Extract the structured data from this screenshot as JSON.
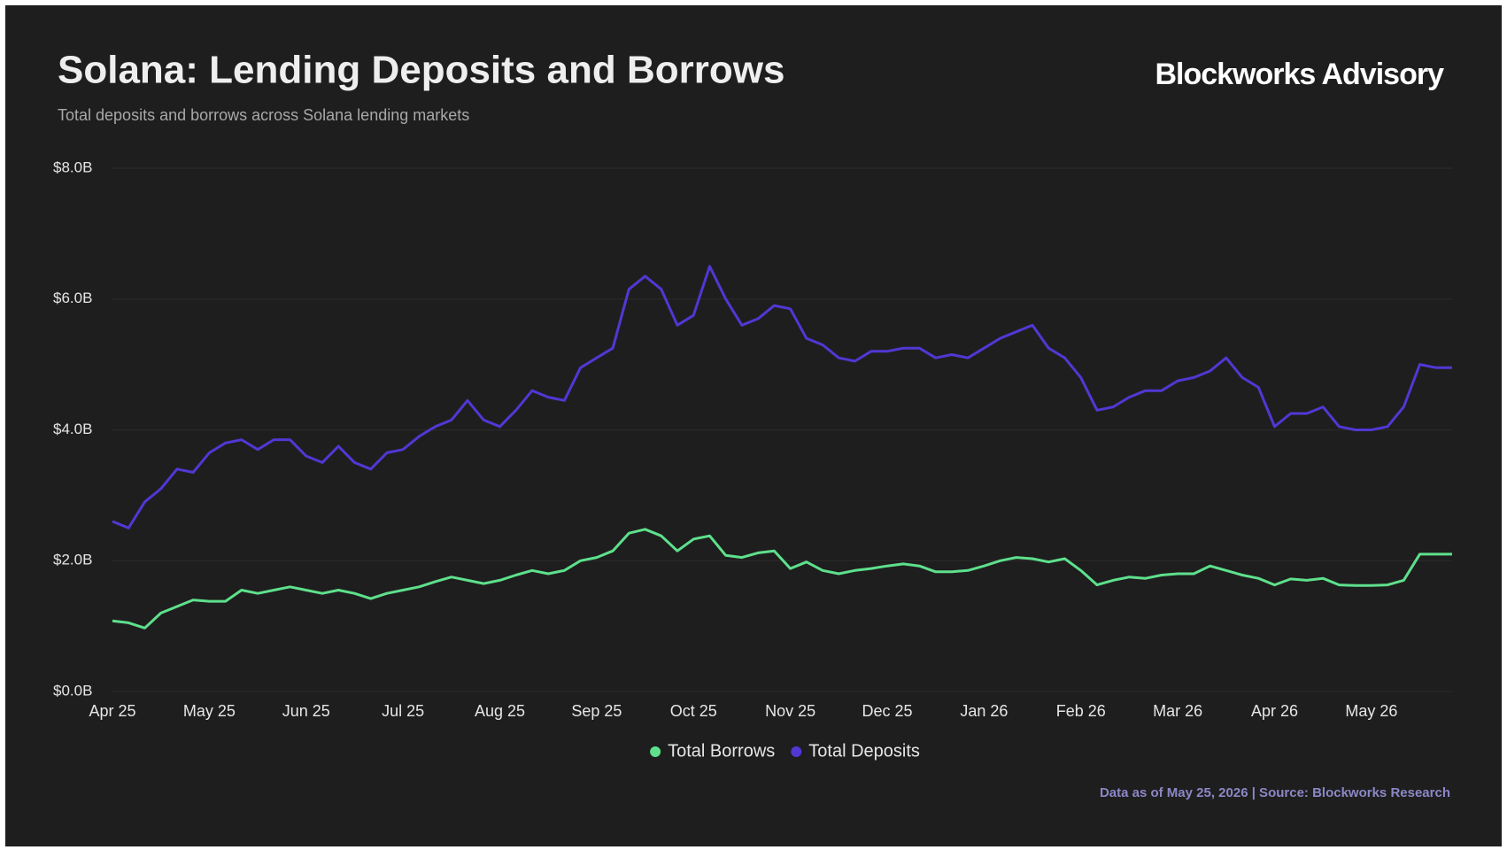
{
  "brand": "Blockworks Advisory",
  "footer": "Data as of May 25, 2026 | Source: Blockworks Research",
  "chart_data": {
    "type": "line",
    "title": "Solana: Lending Deposits and Borrows",
    "subtitle": "Total deposits and borrows across Solana lending markets",
    "categories": [
      "Apr 25",
      null,
      null,
      null,
      null,
      null,
      "May 25",
      null,
      null,
      null,
      null,
      null,
      "Jun 25",
      null,
      null,
      null,
      null,
      null,
      "Jul 25",
      null,
      null,
      null,
      null,
      null,
      "Aug 25",
      null,
      null,
      null,
      null,
      null,
      "Sep 25",
      null,
      null,
      null,
      null,
      null,
      "Oct 25",
      null,
      null,
      null,
      null,
      null,
      "Nov 25",
      null,
      null,
      null,
      null,
      null,
      "Dec 25",
      null,
      null,
      null,
      null,
      null,
      "Jan 26",
      null,
      null,
      null,
      null,
      null,
      "Feb 26",
      null,
      null,
      null,
      null,
      null,
      "Mar 26",
      null,
      null,
      null,
      null,
      null,
      "Apr 26",
      null,
      null,
      null,
      null,
      null,
      "May 26",
      null,
      null,
      null,
      null,
      null
    ],
    "series": [
      {
        "name": "Total Borrows",
        "color": "#5ee08c",
        "values": [
          1.08,
          1.05,
          0.97,
          1.2,
          1.3,
          1.4,
          1.38,
          1.38,
          1.55,
          1.5,
          1.55,
          1.6,
          1.55,
          1.5,
          1.55,
          1.5,
          1.42,
          1.5,
          1.55,
          1.6,
          1.68,
          1.75,
          1.7,
          1.65,
          1.7,
          1.78,
          1.85,
          1.8,
          1.85,
          2.0,
          2.05,
          2.15,
          2.42,
          2.48,
          2.38,
          2.15,
          2.33,
          2.38,
          2.08,
          2.05,
          2.12,
          2.15,
          1.88,
          1.98,
          1.85,
          1.8,
          1.85,
          1.88,
          1.92,
          1.95,
          1.92,
          1.83,
          1.83,
          1.85,
          1.92,
          2.0,
          2.05,
          2.03,
          1.98,
          2.03,
          1.85,
          1.63,
          1.7,
          1.75,
          1.73,
          1.78,
          1.8,
          1.8,
          1.92,
          1.85,
          1.78,
          1.73,
          1.63,
          1.72,
          1.7,
          1.73,
          1.63,
          1.62,
          1.62,
          1.63,
          1.7,
          2.1,
          2.1,
          2.1
        ]
      },
      {
        "name": "Total Deposits",
        "color": "#5038d4",
        "values": [
          2.6,
          2.5,
          2.9,
          3.1,
          3.4,
          3.35,
          3.65,
          3.8,
          3.85,
          3.7,
          3.85,
          3.85,
          3.6,
          3.5,
          3.75,
          3.5,
          3.4,
          3.65,
          3.7,
          3.9,
          4.05,
          4.15,
          4.45,
          4.15,
          4.05,
          4.3,
          4.6,
          4.5,
          4.45,
          4.95,
          5.1,
          5.25,
          6.15,
          6.35,
          6.15,
          5.6,
          5.75,
          6.5,
          6.0,
          5.6,
          5.7,
          5.9,
          5.85,
          5.4,
          5.3,
          5.1,
          5.05,
          5.2,
          5.2,
          5.25,
          5.25,
          5.1,
          5.15,
          5.1,
          5.25,
          5.4,
          5.5,
          5.6,
          5.25,
          5.1,
          4.8,
          4.3,
          4.35,
          4.5,
          4.6,
          4.6,
          4.75,
          4.8,
          4.9,
          5.1,
          4.8,
          4.65,
          4.05,
          4.25,
          4.25,
          4.35,
          4.05,
          4.0,
          4.0,
          4.05,
          4.35,
          5.0,
          4.95,
          4.95
        ]
      }
    ],
    "ylim": [
      0,
      8
    ],
    "yticks": [
      {
        "value": 0,
        "label": "$0.0B"
      },
      {
        "value": 2,
        "label": "$2.0B"
      },
      {
        "value": 4,
        "label": "$4.0B"
      },
      {
        "value": 6,
        "label": "$6.0B"
      },
      {
        "value": 8,
        "label": "$8.0B"
      }
    ],
    "grid": true,
    "legend": "bottom"
  }
}
